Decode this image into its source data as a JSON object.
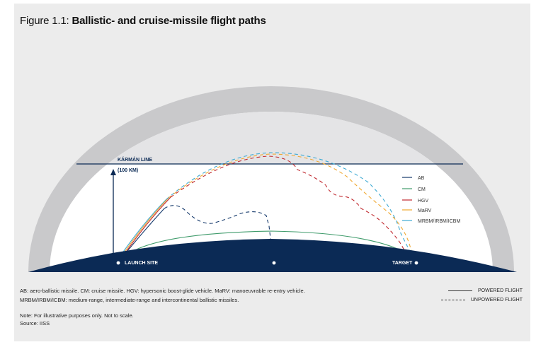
{
  "figure": {
    "label": "Figure 1.1:",
    "title": "Ballistic- and cruise-missile flight paths"
  },
  "diagram": {
    "karman_line": "KÁRMÁN LINE",
    "karman_altitude": "(100 KM)",
    "launch_label": "LAUNCH SITE",
    "target_label": "TARGET",
    "colors": {
      "outer_band": "#c9c9cb",
      "atmosphere": "#ffffff",
      "space": "#e4e4e6",
      "earth": "#0b2a55",
      "karman_line": "#0b2a55"
    }
  },
  "legend": {
    "items": [
      {
        "key": "ab",
        "label": "AB",
        "color": "#163a6c"
      },
      {
        "key": "cm",
        "label": "CM",
        "color": "#3f9b6b"
      },
      {
        "key": "hgv",
        "label": "HGV",
        "color": "#c0282e"
      },
      {
        "key": "marv",
        "label": "MaRV",
        "color": "#f0a830"
      },
      {
        "key": "icbm",
        "label": "MRBM/IRBM/ICBM",
        "color": "#3eaad3"
      }
    ]
  },
  "footer": {
    "abbreviations_line1": "AB: aero-ballistic missile. CM: cruise missile. HGV: hypersonic boost-glide vehicle. MaRV: manoeuvrable re-entry vehicle.",
    "abbreviations_line2": "MRBM/IRBM/ICBM: medium-range, intermediate-range and intercontinental ballistic missiles.",
    "note": "Note: For illustrative purposes only. Not to scale.",
    "source": "Source: IISS",
    "powered_flight": "POWERED FLIGHT",
    "unpowered_flight": "UNPOWERED FLIGHT"
  }
}
